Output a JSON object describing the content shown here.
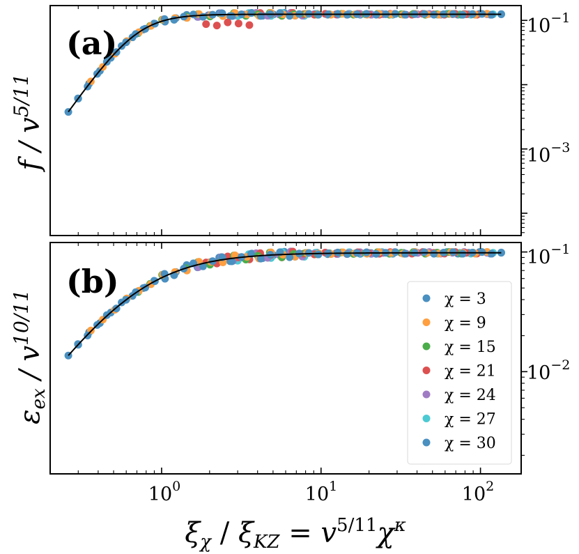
{
  "chart_data": [
    {
      "panel": "(a)",
      "type": "scatter",
      "ylabel": "f / v^{5/11}",
      "ylabel_parts": {
        "main": "f / v",
        "sup": "5/11"
      },
      "xscale": "log",
      "yscale": "log",
      "xlim": [
        0.2,
        180
      ],
      "ylim": [
        4.5e-05,
        0.17
      ],
      "y_axis_side": "right",
      "y_ticks": [
        {
          "value": 0.1,
          "base": "10",
          "exp": "−1"
        },
        {
          "value": 0.001,
          "base": "10",
          "exp": "−3"
        }
      ],
      "curve": {
        "type": "saturation",
        "A": 0.1245,
        "a": 0.7,
        "b": 3.5,
        "p": 3.5,
        "q": 0.9
      }
    },
    {
      "panel": "(b)",
      "type": "scatter",
      "ylabel": "ε_ex / v^{10/11}",
      "ylabel_parts": {
        "main": "ε",
        "sub": "ex",
        "mid": " / v",
        "sup": "10/11"
      },
      "xscale": "log",
      "yscale": "log",
      "xlim": [
        0.2,
        180
      ],
      "ylim": [
        0.0014,
        0.12
      ],
      "y_axis_side": "right",
      "y_ticks": [
        {
          "value": 0.1,
          "base": "10",
          "exp": "−1"
        },
        {
          "value": 0.01,
          "base": "10",
          "exp": "−2"
        }
      ],
      "curve": {
        "type": "saturation",
        "A": 0.0985,
        "a": 0.7,
        "b": 1.8,
        "p": 1.65,
        "q": 1.1
      }
    }
  ],
  "x_axis": {
    "label": "ξ_χ / ξ_KZ = v^{5/11} χ^κ",
    "label_parts": {
      "xi": "ξ",
      "xi_sub": "χ",
      "sep": " / ",
      "xi2": "ξ",
      "xi2_sub": "KZ",
      "eq": " = ",
      "v": "v",
      "v_sup": "5/11",
      "chi": "χ",
      "chi_sup": "κ"
    },
    "ticks": [
      {
        "value": 1,
        "base": "10",
        "exp": "0"
      },
      {
        "value": 10,
        "base": "10",
        "exp": "1"
      },
      {
        "value": 100,
        "base": "10",
        "exp": "2"
      }
    ]
  },
  "series": [
    {
      "name": "χ = 3",
      "label": "χ = 3",
      "color": "#4a90c0",
      "x_range": [
        0.26,
        135
      ],
      "n": 46
    },
    {
      "name": "χ = 9",
      "label": "χ = 9",
      "color": "#ff9f40",
      "x_range": [
        0.36,
        110
      ],
      "n": 34
    },
    {
      "name": "χ = 15",
      "label": "χ = 15",
      "color": "#4aad4a",
      "x_range": [
        0.6,
        90
      ],
      "n": 30
    },
    {
      "name": "χ = 21",
      "label": "χ = 21",
      "color": "#dd5050",
      "x_range": [
        1.9,
        95
      ],
      "n": 26,
      "dip": 0.72
    },
    {
      "name": "χ = 24",
      "label": "χ = 24",
      "color": "#a07cc4",
      "x_range": [
        1.7,
        110
      ],
      "n": 26
    },
    {
      "name": "χ = 27",
      "label": "χ = 27",
      "color": "#4ccad3",
      "x_range": [
        3.0,
        120
      ],
      "n": 24
    },
    {
      "name": "χ = 30",
      "label": "χ = 30",
      "color": "#4a90c0",
      "x_range": [
        0.3,
        135
      ],
      "n": 40
    }
  ],
  "legend": {
    "position": "lower-right",
    "panel": "(b)"
  }
}
